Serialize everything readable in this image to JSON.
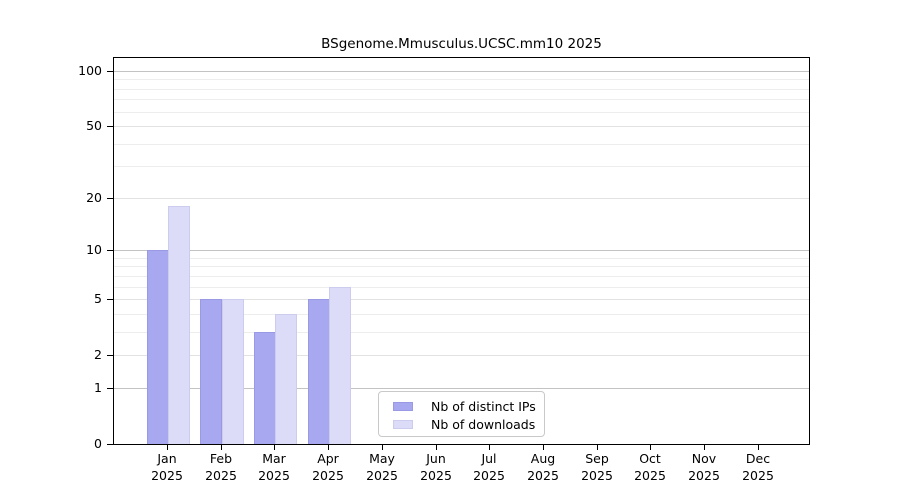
{
  "chart_data": {
    "type": "bar",
    "title": "BSgenome.Mmusculus.UCSC.mm10 2025",
    "x_categories": [
      {
        "label": "Jan",
        "sub": "2025"
      },
      {
        "label": "Feb",
        "sub": "2025"
      },
      {
        "label": "Mar",
        "sub": "2025"
      },
      {
        "label": "Apr",
        "sub": "2025"
      },
      {
        "label": "May",
        "sub": "2025"
      },
      {
        "label": "Jun",
        "sub": "2025"
      },
      {
        "label": "Jul",
        "sub": "2025"
      },
      {
        "label": "Aug",
        "sub": "2025"
      },
      {
        "label": "Sep",
        "sub": "2025"
      },
      {
        "label": "Oct",
        "sub": "2025"
      },
      {
        "label": "Nov",
        "sub": "2025"
      },
      {
        "label": "Dec",
        "sub": "2025"
      }
    ],
    "series": [
      {
        "name": "Nb of distinct IPs",
        "color": "#a8a8f0",
        "border_color": "#9a9ae4",
        "values": [
          10,
          5,
          3,
          5,
          0,
          0,
          0,
          0,
          0,
          0,
          0,
          0
        ]
      },
      {
        "name": "Nb of downloads",
        "color": "#dcdcf9",
        "border_color": "#ccccef",
        "values": [
          18,
          5,
          4,
          6,
          0,
          0,
          0,
          0,
          0,
          0,
          0,
          0
        ]
      }
    ],
    "y_axis": {
      "scale": "log10(value+1)",
      "major_ticks": [
        0,
        1,
        2,
        5,
        10,
        20,
        50,
        100
      ],
      "minor_ticks": [
        3,
        4,
        6,
        7,
        8,
        9,
        30,
        40,
        60,
        70,
        80,
        90
      ],
      "emphasized_gridlines": [
        1,
        10,
        100
      ],
      "ylim": [
        0,
        113
      ]
    },
    "legend": {
      "position": "bottom-center",
      "entries": [
        "Nb of distinct IPs",
        "Nb of downloads"
      ]
    },
    "grid": true,
    "colors": {
      "frame": "#000000",
      "grid_emphasis": "#c3c3c3",
      "grid_major": "#e2e2e2",
      "grid_minor": "#ededed",
      "background": "#ffffff",
      "text": "#000000"
    }
  }
}
